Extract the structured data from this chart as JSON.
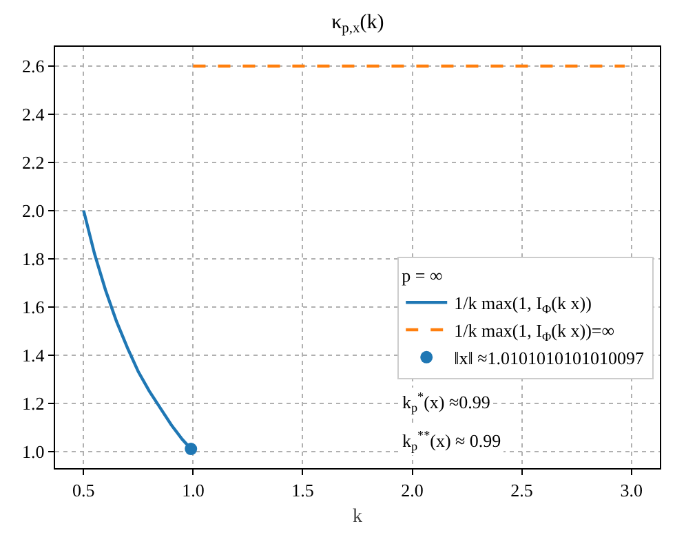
{
  "chart_data": {
    "type": "line",
    "title": "κ$_{p,x}$(k)",
    "xlabel": "k",
    "legend_title": "p = ∞",
    "xlim": [
      0.37,
      3.13
    ],
    "ylim": [
      0.93,
      2.68
    ],
    "xticks": [
      {
        "value": 0.5,
        "label": "0.5"
      },
      {
        "value": 1,
        "label": "1.0"
      },
      {
        "value": 1.5,
        "label": "1.5"
      },
      {
        "value": 2,
        "label": "2.0"
      },
      {
        "value": 2.5,
        "label": "2.5"
      },
      {
        "value": 3,
        "label": "3.0"
      }
    ],
    "yticks": [
      {
        "value": 1,
        "label": "1.0"
      },
      1.2,
      1.4,
      1.6,
      1.8,
      {
        "value": 2,
        "label": "2.0"
      },
      2.2,
      2.4,
      2.6
    ],
    "grid": true,
    "legend": "bottom right",
    "series": [
      {
        "name": "1/k max(1, I$_{Φ}$(k x))",
        "color": "#1f77b4",
        "line_style": "solid",
        "x": [
          0.5,
          0.55,
          0.6,
          0.65,
          0.7,
          0.75,
          0.8,
          0.85,
          0.9,
          0.95,
          0.99
        ],
        "values": [
          2.0,
          1.82,
          1.67,
          1.54,
          1.43,
          1.33,
          1.25,
          1.18,
          1.11,
          1.05,
          1.01
        ]
      },
      {
        "name": "1/k max(1, I$_{Φ}$(k x))=∞",
        "color": "#ff7f0e",
        "line_style": "dashed",
        "x": [
          1.0,
          2.97
        ],
        "values": [
          2.6,
          2.6
        ]
      },
      {
        "name": "‖x‖ ≈1.0101010101010097",
        "type": "scatter",
        "color": "#1f77b4",
        "marker": "circle",
        "x": [
          0.99
        ],
        "values": [
          1.01
        ]
      }
    ],
    "annotations": [
      "k$_{p}$$^{*}$(x) ≈0.99",
      "k$_{p}$$^{**}$(x) ≈ 0.99"
    ]
  }
}
